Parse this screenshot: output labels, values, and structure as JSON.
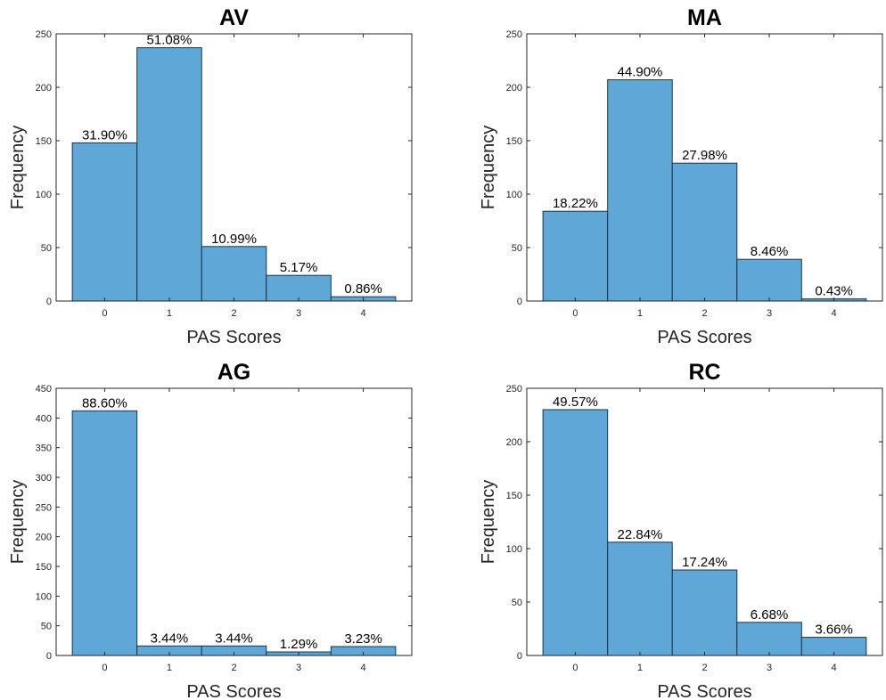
{
  "chart_data": [
    {
      "type": "bar",
      "title": "AV",
      "xlabel": "PAS Scores",
      "ylabel": "Frequency",
      "categories": [
        "0",
        "1",
        "2",
        "3",
        "4"
      ],
      "values": [
        148,
        237,
        51,
        24,
        4
      ],
      "data_labels": [
        "31.90%",
        "51.08%",
        "10.99%",
        "5.17%",
        "0.86%"
      ],
      "xlim": [
        -0.75,
        4.75
      ],
      "ylim": [
        0,
        250
      ],
      "yticks": [
        0,
        50,
        100,
        150,
        200,
        250
      ],
      "bar_color": "#5fa7d6",
      "grid": false,
      "legend": "none"
    },
    {
      "type": "bar",
      "title": "MA",
      "xlabel": "PAS Scores",
      "ylabel": "Frequency",
      "categories": [
        "0",
        "1",
        "2",
        "3",
        "4"
      ],
      "values": [
        84,
        207,
        129,
        39,
        2
      ],
      "data_labels": [
        "18.22%",
        "44.90%",
        "27.98%",
        "8.46%",
        "0.43%"
      ],
      "xlim": [
        -0.75,
        4.75
      ],
      "ylim": [
        0,
        250
      ],
      "yticks": [
        0,
        50,
        100,
        150,
        200,
        250
      ],
      "bar_color": "#5fa7d6",
      "grid": false,
      "legend": "none"
    },
    {
      "type": "bar",
      "title": "AG",
      "xlabel": "PAS Scores",
      "ylabel": "Frequency",
      "categories": [
        "0",
        "1",
        "2",
        "3",
        "4"
      ],
      "values": [
        412,
        16,
        16,
        6,
        15
      ],
      "data_labels": [
        "88.60%",
        "3.44%",
        "3.44%",
        "1.29%",
        "3.23%"
      ],
      "xlim": [
        -0.75,
        4.75
      ],
      "ylim": [
        0,
        450
      ],
      "yticks": [
        0,
        50,
        100,
        150,
        200,
        250,
        300,
        350,
        400,
        450
      ],
      "bar_color": "#5fa7d6",
      "grid": false,
      "legend": "none"
    },
    {
      "type": "bar",
      "title": "RC",
      "xlabel": "PAS Scores",
      "ylabel": "Frequency",
      "categories": [
        "0",
        "1",
        "2",
        "3",
        "4"
      ],
      "values": [
        230,
        106,
        80,
        31,
        17
      ],
      "data_labels": [
        "49.57%",
        "22.84%",
        "17.24%",
        "6.68%",
        "3.66%"
      ],
      "xlim": [
        -0.75,
        4.75
      ],
      "ylim": [
        0,
        250
      ],
      "yticks": [
        0,
        50,
        100,
        150,
        200,
        250
      ],
      "bar_color": "#5fa7d6",
      "grid": false,
      "legend": "none"
    }
  ]
}
